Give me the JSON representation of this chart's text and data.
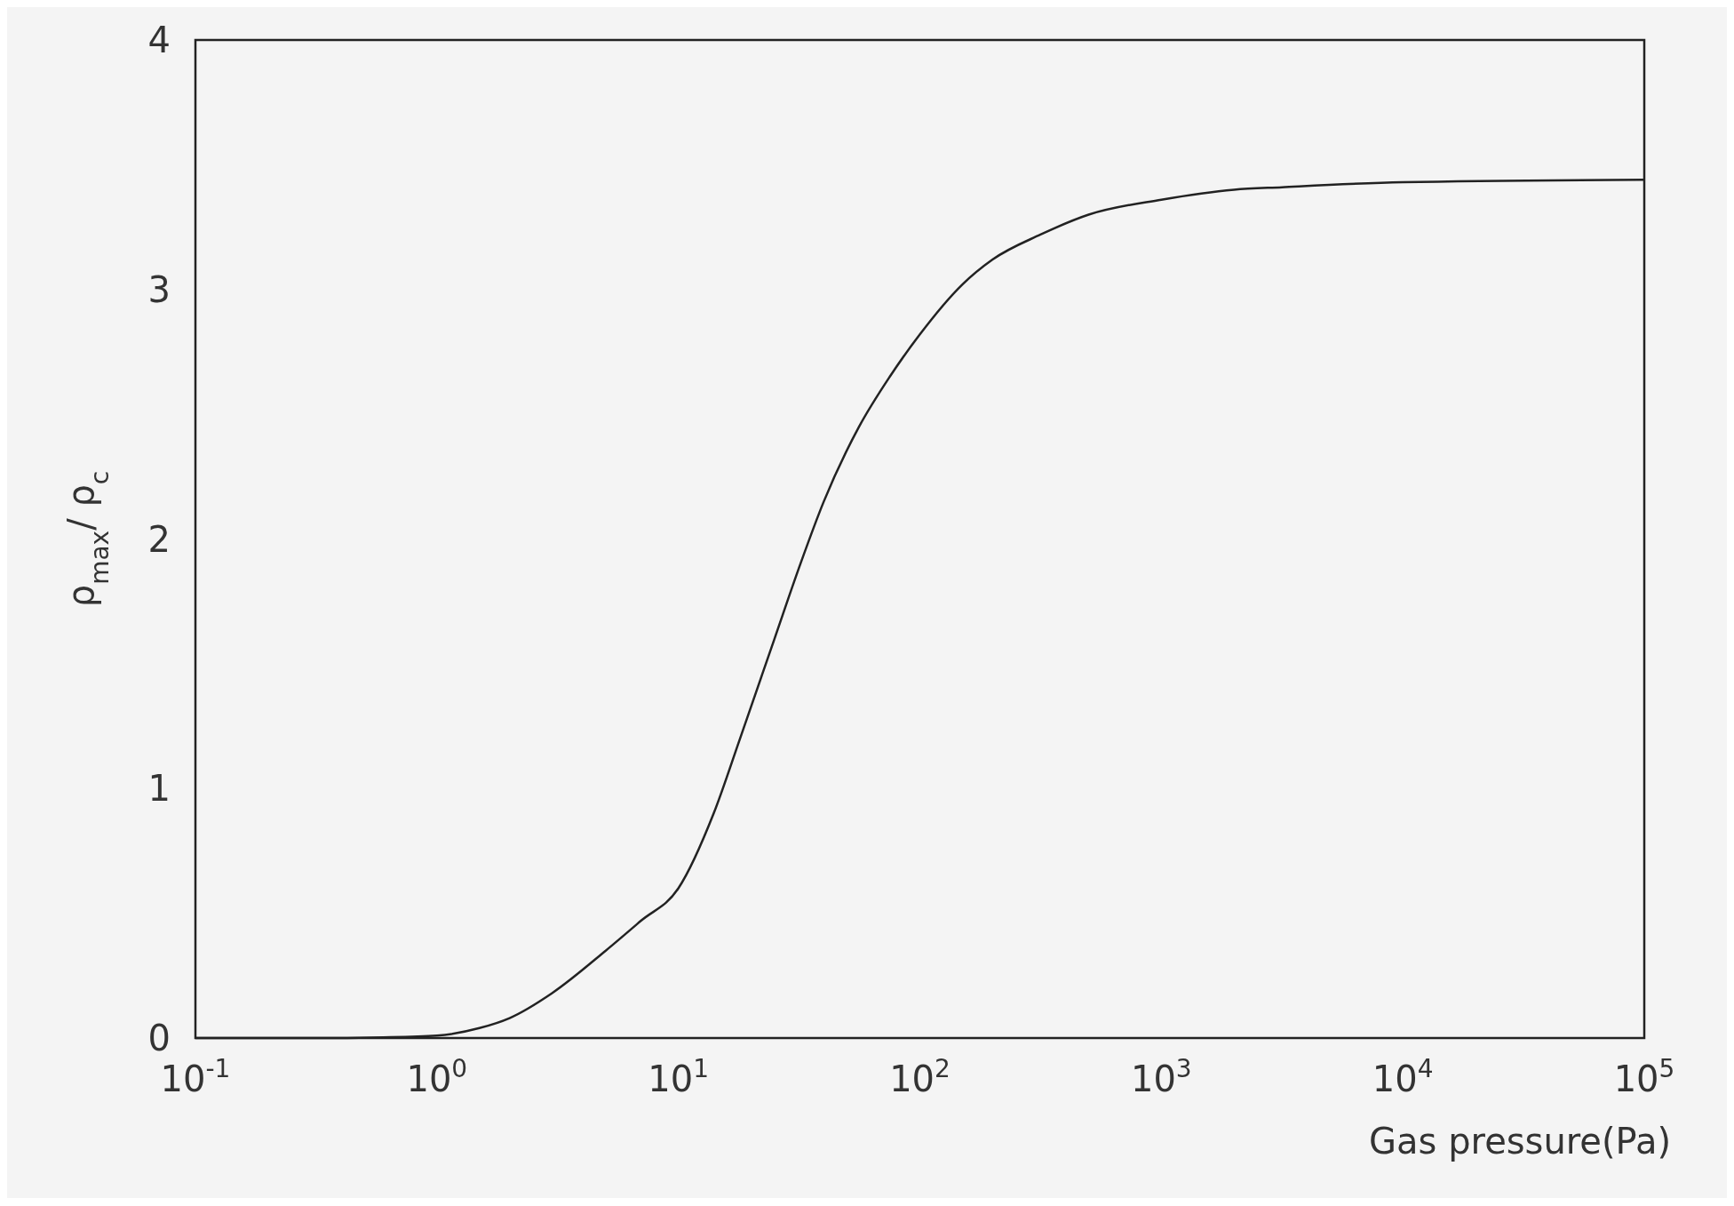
{
  "chart_data": {
    "type": "line",
    "xlabel": "Gas pressure(Pa)",
    "ylabel": "ρ$_{max}$/ ρ$_{c}$",
    "log": "x",
    "xlim": [
      0.1,
      100000
    ],
    "ylim": [
      0,
      4
    ],
    "xticks": [
      {
        "value": 0.1,
        "label": "10$^{-1}$"
      },
      {
        "value": 1,
        "label": "10$^{0}$"
      },
      {
        "value": 10,
        "label": "10$^{1}$"
      },
      {
        "value": 100,
        "label": "10$^{2}$"
      },
      {
        "value": 1000,
        "label": "10$^{3}$"
      },
      {
        "value": 10000,
        "label": "10$^{4}$"
      },
      {
        "value": 100000,
        "label": "10$^{5}$"
      }
    ],
    "yticks": [
      0,
      1,
      2,
      3,
      4
    ],
    "grid": false,
    "series": [
      {
        "color": "#222222",
        "x": [
          0.1,
          0.3,
          0.6,
          1,
          1.5,
          2,
          3,
          5,
          7,
          10,
          14,
          18,
          25,
          32,
          40,
          56,
          75,
          100,
          150,
          200,
          316,
          500,
          1000,
          2000,
          3162,
          10000,
          100000
        ],
        "values": [
          0,
          0,
          0.003,
          0.01,
          0.04,
          0.08,
          0.18,
          0.35,
          0.47,
          0.6,
          0.9,
          1.2,
          1.6,
          1.9,
          2.15,
          2.45,
          2.65,
          2.82,
          3.02,
          3.12,
          3.22,
          3.3,
          3.36,
          3.4,
          3.41,
          3.43,
          3.44
        ]
      }
    ]
  }
}
